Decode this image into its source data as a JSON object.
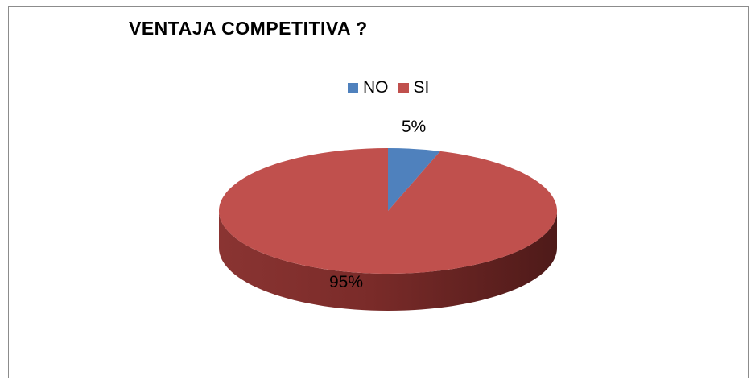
{
  "chart_data": {
    "type": "pie",
    "title": "VENTAJA COMPETITIVA ?",
    "labels": [
      "NO",
      "SI"
    ],
    "values": [
      5,
      95
    ],
    "data_labels": [
      "5%",
      "95%"
    ],
    "colors": [
      "#4f81bd",
      "#c0504d"
    ],
    "legend_position": "top",
    "three_d": true
  }
}
